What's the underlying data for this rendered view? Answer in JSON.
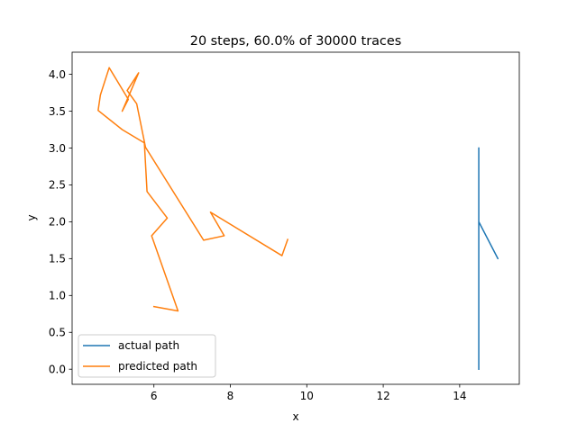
{
  "chart_data": {
    "type": "line",
    "title": "20 steps, 60.0% of 30000 traces",
    "xlabel": "x",
    "ylabel": "y",
    "xlim": [
      3.86,
      15.56
    ],
    "ylim": [
      -0.205,
      4.3
    ],
    "xticks": [
      6,
      8,
      10,
      12,
      14
    ],
    "yticks": [
      0.0,
      0.5,
      1.0,
      1.5,
      2.0,
      2.5,
      3.0,
      3.5,
      4.0
    ],
    "xtick_labels": [
      "6",
      "8",
      "10",
      "12",
      "14"
    ],
    "ytick_labels": [
      "0.0",
      "0.5",
      "1.0",
      "1.5",
      "2.0",
      "2.5",
      "3.0",
      "3.5",
      "4.0"
    ],
    "grid": false,
    "legend_position": "lower-left",
    "series": [
      {
        "name": "actual path",
        "color": "#1f77b4",
        "points": [
          [
            14.5,
            0.0
          ],
          [
            14.5,
            2.0
          ],
          [
            15.0,
            1.5
          ],
          [
            14.5,
            2.0
          ],
          [
            14.5,
            3.0
          ]
        ]
      },
      {
        "name": "predicted path",
        "color": "#ff7f0e",
        "points": [
          [
            6.0,
            0.85
          ],
          [
            6.63,
            0.79
          ],
          [
            5.94,
            1.81
          ],
          [
            6.35,
            2.05
          ],
          [
            5.82,
            2.41
          ],
          [
            5.75,
            3.07
          ],
          [
            5.17,
            3.25
          ],
          [
            4.54,
            3.51
          ],
          [
            4.6,
            3.72
          ],
          [
            4.83,
            4.09
          ],
          [
            5.33,
            3.66
          ],
          [
            5.17,
            3.5
          ],
          [
            5.6,
            4.02
          ],
          [
            5.3,
            3.78
          ],
          [
            5.55,
            3.6
          ],
          [
            5.78,
            3.01
          ],
          [
            7.3,
            1.75
          ],
          [
            7.84,
            1.81
          ],
          [
            7.48,
            2.13
          ],
          [
            9.35,
            1.54
          ],
          [
            9.5,
            1.76
          ]
        ]
      }
    ]
  }
}
